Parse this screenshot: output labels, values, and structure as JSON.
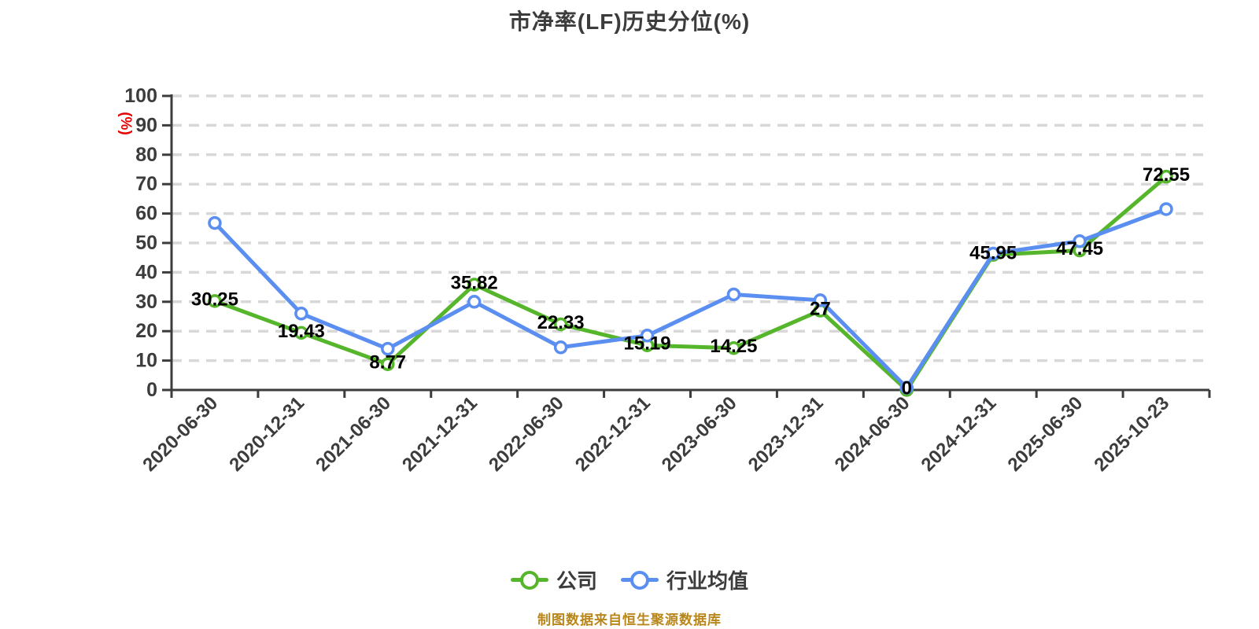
{
  "chart_data": {
    "type": "line",
    "title": "市净率(LF)历史分位(%)",
    "ylabel": "(%)",
    "xlabel": "",
    "source_note": "制图数据来自恒生聚源数据库",
    "ylim": [
      0,
      100
    ],
    "ytick_step": 10,
    "yticks": [
      0,
      10,
      20,
      30,
      40,
      50,
      60,
      70,
      80,
      90,
      100
    ],
    "grid": "horizontal-dashed",
    "legend_position": "bottom",
    "categories": [
      "2020-06-30",
      "2020-12-31",
      "2021-06-30",
      "2021-12-31",
      "2022-06-30",
      "2022-12-31",
      "2023-06-30",
      "2023-12-31",
      "2024-06-30",
      "2024-12-31",
      "2025-06-30",
      "2025-10-23"
    ],
    "series": [
      {
        "name": "公司",
        "color": "#55B62B",
        "show_labels": true,
        "values": [
          30.25,
          19.43,
          8.77,
          35.82,
          22.33,
          15.19,
          14.25,
          27,
          0,
          45.95,
          47.45,
          72.55
        ]
      },
      {
        "name": "行业均值",
        "color": "#5A8EF0",
        "show_labels": false,
        "values": [
          56.8,
          26,
          14,
          30,
          14.5,
          18.5,
          32.5,
          30.5,
          0.8,
          46.4,
          50.6,
          61.5
        ]
      }
    ]
  },
  "colors": {
    "axis": "#3C3C3C",
    "tick_label": "#3C3C3C",
    "grid": "#D8D8D8",
    "data_label": "#000000",
    "y_unit": "#E60000",
    "source": "#B8861B",
    "marker_fill": "#FFFFFF",
    "background": "#FFFFFF"
  }
}
